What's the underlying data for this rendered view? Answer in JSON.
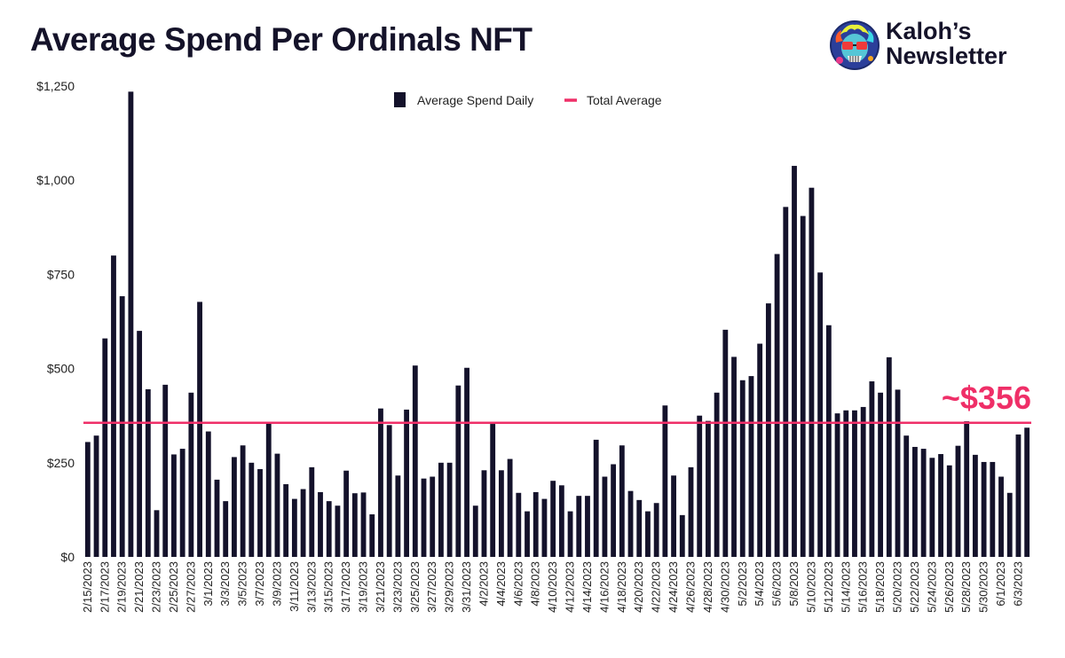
{
  "header": {
    "title": "Average Spend Per Ordinals NFT"
  },
  "brand": {
    "line1": "Kaloh’s",
    "line2": "Newsletter",
    "logo_icon": "skull-avatar-icon"
  },
  "colors": {
    "bar": "#14122b",
    "average_line": "#ef2f68",
    "text": "#222222"
  },
  "chart_data": {
    "type": "bar",
    "title": "Average Spend Per Ordinals NFT",
    "xlabel": "",
    "ylabel": "",
    "ylim": [
      0,
      1250
    ],
    "yticks": [
      0,
      250,
      500,
      750,
      1000,
      1250
    ],
    "ytick_labels": [
      "$0",
      "$250",
      "$500",
      "$750",
      "$1,000",
      "$1,250"
    ],
    "grid": false,
    "legend_position": "top-center",
    "date_range": [
      "2/15/2023",
      "6/4/2023"
    ],
    "xtick_labels": [
      "2/15/2023",
      "2/17/2023",
      "2/19/2023",
      "2/21/2023",
      "2/23/2023",
      "2/25/2023",
      "2/27/2023",
      "3/1/2023",
      "3/3/2023",
      "3/5/2023",
      "3/7/2023",
      "3/9/2023",
      "3/11/2023",
      "3/13/2023",
      "3/15/2023",
      "3/17/2023",
      "3/19/2023",
      "3/21/2023",
      "3/23/2023",
      "3/25/2023",
      "3/27/2023",
      "3/29/2023",
      "3/31/2023",
      "4/2/2023",
      "4/4/2023",
      "4/6/2023",
      "4/8/2023",
      "4/10/2023",
      "4/12/2023",
      "4/14/2023",
      "4/16/2023",
      "4/18/2023",
      "4/20/2023",
      "4/22/2023",
      "4/24/2023",
      "4/26/2023",
      "4/28/2023",
      "4/30/2023",
      "5/2/2023",
      "5/4/2023",
      "5/6/2023",
      "5/8/2023",
      "5/10/2023",
      "5/12/2023",
      "5/14/2023",
      "5/16/2023",
      "5/18/2023",
      "5/20/2023",
      "5/22/2023",
      "5/24/2023",
      "5/26/2023",
      "5/28/2023",
      "5/30/2023",
      "6/1/2023",
      "6/3/2023"
    ],
    "series": [
      {
        "name": "Average Spend Daily",
        "values": [
          305,
          322,
          580,
          800,
          692,
          1235,
          600,
          445,
          124,
          457,
          272,
          287,
          436,
          677,
          333,
          205,
          148,
          265,
          296,
          250,
          233,
          357,
          274,
          193,
          154,
          180,
          238,
          172,
          148,
          136,
          229,
          169,
          171,
          113,
          394,
          350,
          216,
          391,
          508,
          208,
          213,
          250,
          250,
          455,
          502,
          136,
          230,
          353,
          230,
          260,
          170,
          121,
          172,
          154,
          202,
          190,
          121,
          162,
          162,
          311,
          213,
          246,
          296,
          175,
          151,
          121,
          143,
          402,
          216,
          111,
          238,
          375,
          361,
          436,
          603,
          531,
          469,
          480,
          566,
          673,
          804,
          929,
          1038,
          905,
          980,
          755,
          615,
          381,
          389,
          389,
          398,
          466,
          436,
          530,
          444,
          322,
          292,
          287,
          263,
          273,
          243,
          295,
          360,
          271,
          252,
          252,
          213,
          170,
          325,
          343
        ]
      },
      {
        "name": "Total Average",
        "type": "line",
        "value": 356,
        "label": "~$356"
      }
    ]
  }
}
